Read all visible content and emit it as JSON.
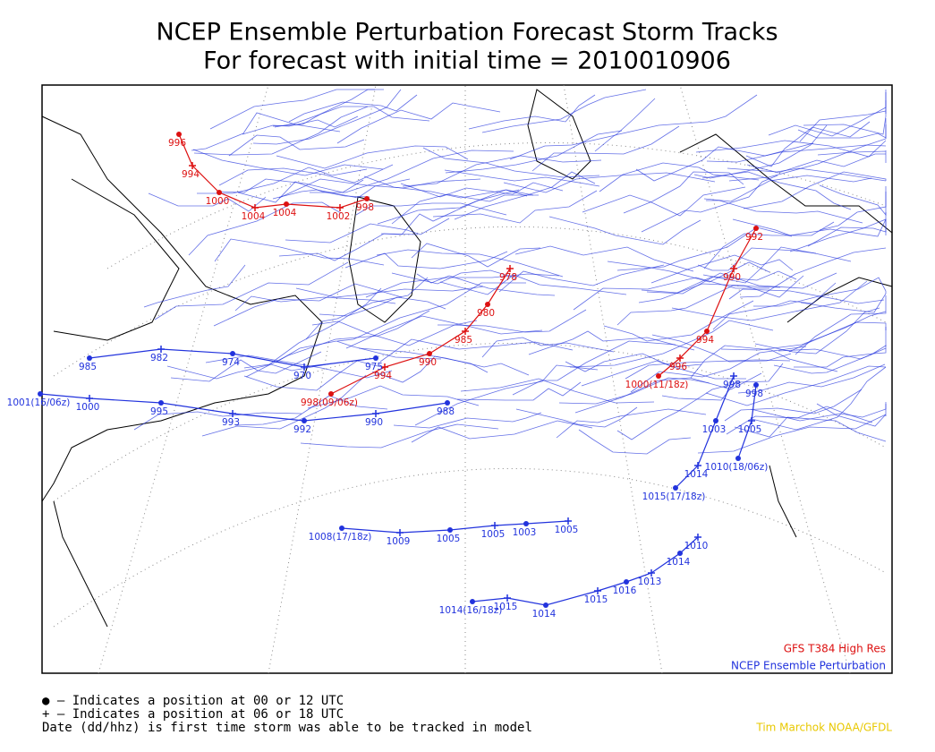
{
  "title": "NCEP Ensemble Perturbation Forecast Storm Tracks",
  "subtitle": "For forecast with initial time = 2010010906",
  "legend": [
    "● – Indicates a position at 00 or 12 UTC",
    "+ – Indicates a position at 06 or 18 UTC",
    "Date (dd/hhz) is first time storm was able to be tracked in model"
  ],
  "model_label": "GFS T384 High Res",
  "ensemble_label": "NCEP Ensemble Perturbation",
  "credit": "Tim Marchok NOAA/GFDL",
  "tracks": [
    {
      "color": "#2233dd",
      "labels": [
        "1014(16/18z)",
        "1015",
        "1014",
        "1015",
        "1016",
        "1013",
        "1014",
        "1010"
      ]
    },
    {
      "color": "#2233dd",
      "labels": [
        "1008(17/18z)",
        "1009",
        "1005",
        "1005",
        "1003",
        "1005"
      ]
    },
    {
      "color": "#dd1111",
      "labels": [
        "996",
        "994",
        "1000",
        "1004",
        "1004",
        "1002",
        "998"
      ]
    },
    {
      "color": "#dd1111",
      "labels": [
        "998(09/06z)",
        "994",
        "990",
        "985",
        "980",
        "978"
      ]
    },
    {
      "color": "#dd1111",
      "labels": [
        "1000(11/18z)",
        "996",
        "994",
        "990",
        "992"
      ]
    },
    {
      "color": "#2233dd",
      "labels": [
        "1001(16/06z)",
        "1000",
        "995",
        "993",
        "992",
        "990",
        "988"
      ]
    },
    {
      "color": "#2233dd",
      "labels": [
        "1015(17/18z)",
        "1014",
        "1003",
        "998"
      ]
    },
    {
      "color": "#2233dd",
      "labels": [
        "1010(18/06z)",
        "1005",
        "998"
      ]
    },
    {
      "color": "#2233dd",
      "labels": [
        "985",
        "982",
        "974",
        "970",
        "975"
      ]
    }
  ]
}
